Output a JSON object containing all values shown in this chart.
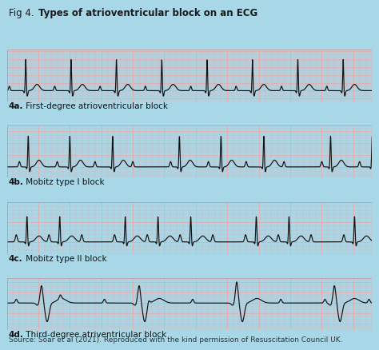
{
  "bg_color": "#a8d8e8",
  "strip_bg": "#f5c6c6",
  "grid_minor_color": "#e8a8a8",
  "grid_major_color": "#d89090",
  "ecg_color": "#111111",
  "title_plain": "Fig 4. ",
  "title_bold": "Types of atrioventricular block on an ECG",
  "labels": [
    {
      "bold": "4a.",
      "normal": " First-degree atrioventricular block"
    },
    {
      "bold": "4b.",
      "normal": " Mobitz type I block"
    },
    {
      "bold": "4c.",
      "normal": " Mobitz type II block"
    },
    {
      "bold": "4d.",
      "normal": " Third-degree atriventricular block"
    }
  ],
  "source": "Source: Soar et al (2021). Reproduced with the kind permission of Resuscitation Council UK.",
  "label_fontsize": 7.5,
  "title_fontsize": 8.5,
  "source_fontsize": 6.5
}
